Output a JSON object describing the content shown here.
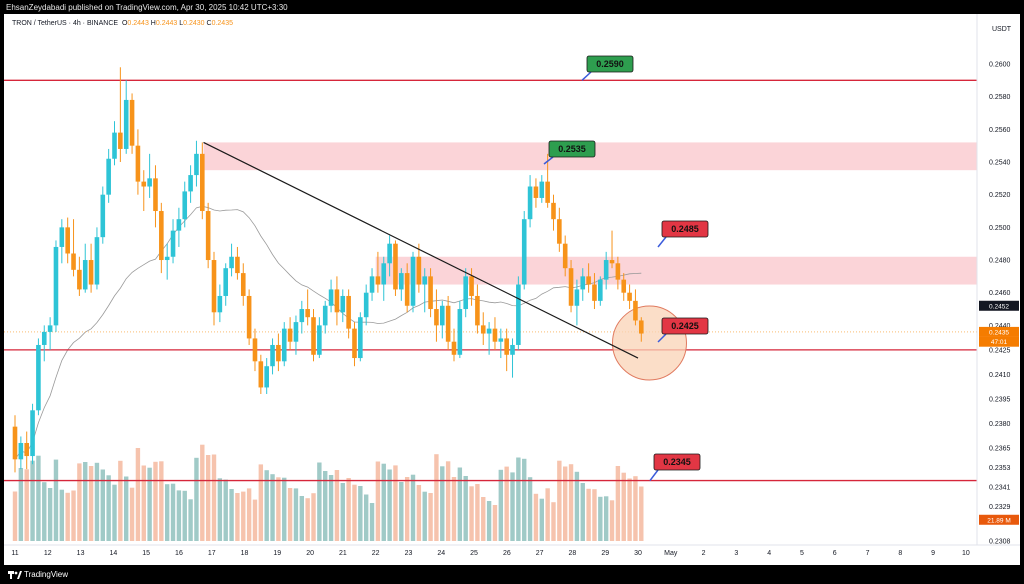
{
  "header": {
    "published_text": "EhsanZeydabadi published on TradingView.com, Apr 30, 2025 10:42 UTC+3:30"
  },
  "legend": {
    "symbol": "TRON / TetherUS · 4h · BINANCE",
    "o_label": "O",
    "o_value": "0.2443",
    "h_label": "H",
    "h_value": "0.2443",
    "l_label": "L",
    "l_value": "0.2430",
    "c_label": "C",
    "c_value": "0.2435"
  },
  "footer": {
    "brand": "TradingView"
  },
  "colors": {
    "up": "#26a69a",
    "up_candle": "#2ec4d6",
    "down": "#f7931a",
    "level_line": "#d6263a",
    "zone_fill": "#fbd4d8",
    "green_label": "#2e9e4f",
    "red_label": "#e23644",
    "circle_fill": "#f9d3b6",
    "circle_stroke": "#e07a5f"
  },
  "chart_data": {
    "type": "candlestick",
    "interval": "4h",
    "quote_currency": "USDT",
    "y_axis_label": "USDT",
    "ylim": [
      0.23,
      0.262
    ],
    "y_ticks": [
      "0.2600",
      "0.2580",
      "0.2560",
      "0.2540",
      "0.2520",
      "0.2500",
      "0.2480",
      "0.2460",
      "0.2440",
      "0.2425",
      "0.2410",
      "0.2395",
      "0.2380",
      "0.2365",
      "0.2353",
      "0.2341",
      "0.2329",
      "0.2308"
    ],
    "x_ticks": [
      "11",
      "12",
      "13",
      "14",
      "15",
      "16",
      "17",
      "18",
      "19",
      "20",
      "21",
      "22",
      "23",
      "24",
      "25",
      "26",
      "27",
      "28",
      "29",
      "30",
      "May",
      "2",
      "3",
      "4",
      "5",
      "6",
      "7",
      "8",
      "9",
      "10"
    ],
    "horizontal_levels": [
      0.259,
      0.2425,
      0.2345
    ],
    "zones": [
      {
        "from": 0.2535,
        "to": 0.2552
      },
      {
        "from": 0.2465,
        "to": 0.2482
      }
    ],
    "trendline": {
      "from": {
        "day": 16.75,
        "price": 0.2552
      },
      "to": {
        "day": 30.0,
        "price": 0.242
      }
    },
    "callouts": [
      {
        "text": "0.2590",
        "color": "green",
        "day": 29.0,
        "price": 0.259
      },
      {
        "text": "0.2535",
        "color": "green",
        "day": 27.3,
        "price": 0.2535
      },
      {
        "text": "0.2485",
        "color": "red",
        "day": 30.7,
        "price": 0.248
      },
      {
        "text": "0.2425",
        "color": "red",
        "day": 30.7,
        "price": 0.2425
      },
      {
        "text": "0.2345",
        "color": "red",
        "day": 30.4,
        "price": 0.2345
      }
    ],
    "price_tags": [
      {
        "text": "0.2452",
        "style": "dark",
        "price": 0.2452
      },
      {
        "text": "0.2435",
        "style": "orange",
        "price": 0.2436
      },
      {
        "text": "47:01",
        "style": "orange",
        "price": 0.243
      },
      {
        "text": "21.89 M",
        "style": "orange",
        "price": 0.2321
      }
    ],
    "circle": {
      "day": 30.35,
      "price": 0.2428
    },
    "candles": [
      [
        0.2378,
        0.2385,
        0.235,
        0.2358
      ],
      [
        0.2358,
        0.2372,
        0.2352,
        0.2368
      ],
      [
        0.2368,
        0.2375,
        0.2352,
        0.236
      ],
      [
        0.236,
        0.2392,
        0.2355,
        0.2388
      ],
      [
        0.2388,
        0.2432,
        0.2385,
        0.2428
      ],
      [
        0.2428,
        0.244,
        0.2418,
        0.2436
      ],
      [
        0.2436,
        0.2445,
        0.2425,
        0.244
      ],
      [
        0.244,
        0.2492,
        0.2436,
        0.2488
      ],
      [
        0.2488,
        0.2505,
        0.2478,
        0.25
      ],
      [
        0.25,
        0.2506,
        0.2478,
        0.2484
      ],
      [
        0.2484,
        0.2505,
        0.247,
        0.2474
      ],
      [
        0.2474,
        0.2482,
        0.2458,
        0.2462
      ],
      [
        0.2462,
        0.249,
        0.246,
        0.248
      ],
      [
        0.248,
        0.249,
        0.246,
        0.2465
      ],
      [
        0.2465,
        0.25,
        0.2462,
        0.2494
      ],
      [
        0.2494,
        0.2525,
        0.249,
        0.252
      ],
      [
        0.252,
        0.2548,
        0.2515,
        0.2542
      ],
      [
        0.2542,
        0.2565,
        0.2538,
        0.2558
      ],
      [
        0.2558,
        0.2598,
        0.254,
        0.2548
      ],
      [
        0.2548,
        0.259,
        0.2545,
        0.2578
      ],
      [
        0.2578,
        0.2582,
        0.2545,
        0.255
      ],
      [
        0.255,
        0.256,
        0.252,
        0.2528
      ],
      [
        0.2528,
        0.2535,
        0.251,
        0.2525
      ],
      [
        0.2525,
        0.2545,
        0.2518,
        0.253
      ],
      [
        0.253,
        0.2538,
        0.25,
        0.251
      ],
      [
        0.251,
        0.2515,
        0.2472,
        0.248
      ],
      [
        0.248,
        0.249,
        0.2468,
        0.2482
      ],
      [
        0.2482,
        0.2505,
        0.2478,
        0.2498
      ],
      [
        0.2498,
        0.2512,
        0.2488,
        0.2505
      ],
      [
        0.2505,
        0.2528,
        0.25,
        0.2522
      ],
      [
        0.2522,
        0.2538,
        0.2515,
        0.2532
      ],
      [
        0.2532,
        0.2553,
        0.2525,
        0.2545
      ],
      [
        0.2545,
        0.2552,
        0.2505,
        0.251
      ],
      [
        0.251,
        0.2515,
        0.2475,
        0.248
      ],
      [
        0.248,
        0.2485,
        0.244,
        0.2448
      ],
      [
        0.2448,
        0.2465,
        0.2442,
        0.2458
      ],
      [
        0.2458,
        0.2478,
        0.2452,
        0.2475
      ],
      [
        0.2475,
        0.249,
        0.247,
        0.2482
      ],
      [
        0.2482,
        0.2488,
        0.2468,
        0.2472
      ],
      [
        0.2472,
        0.2478,
        0.2452,
        0.2458
      ],
      [
        0.2458,
        0.2462,
        0.2428,
        0.2432
      ],
      [
        0.2432,
        0.2438,
        0.2412,
        0.2418
      ],
      [
        0.2418,
        0.2422,
        0.2398,
        0.2402
      ],
      [
        0.2402,
        0.242,
        0.2398,
        0.2415
      ],
      [
        0.2415,
        0.2432,
        0.241,
        0.2428
      ],
      [
        0.2428,
        0.2435,
        0.2412,
        0.2418
      ],
      [
        0.2418,
        0.2442,
        0.2415,
        0.2438
      ],
      [
        0.2438,
        0.2445,
        0.2425,
        0.243
      ],
      [
        0.243,
        0.2446,
        0.2422,
        0.2442
      ],
      [
        0.2442,
        0.2455,
        0.2435,
        0.245
      ],
      [
        0.245,
        0.2462,
        0.244,
        0.2445
      ],
      [
        0.2445,
        0.245,
        0.2418,
        0.2422
      ],
      [
        0.2422,
        0.2445,
        0.242,
        0.244
      ],
      [
        0.244,
        0.2455,
        0.2435,
        0.2452
      ],
      [
        0.2452,
        0.2468,
        0.2448,
        0.2462
      ],
      [
        0.2462,
        0.247,
        0.244,
        0.2448
      ],
      [
        0.2448,
        0.2462,
        0.2442,
        0.2458
      ],
      [
        0.2458,
        0.2462,
        0.2432,
        0.2438
      ],
      [
        0.2438,
        0.2442,
        0.2415,
        0.242
      ],
      [
        0.242,
        0.2448,
        0.2418,
        0.2445
      ],
      [
        0.2445,
        0.2465,
        0.244,
        0.246
      ],
      [
        0.246,
        0.2475,
        0.2455,
        0.247
      ],
      [
        0.247,
        0.2485,
        0.246,
        0.2465
      ],
      [
        0.2465,
        0.2482,
        0.2455,
        0.2478
      ],
      [
        0.2478,
        0.2495,
        0.247,
        0.249
      ],
      [
        0.249,
        0.2492,
        0.2458,
        0.2462
      ],
      [
        0.2462,
        0.2475,
        0.2455,
        0.2472
      ],
      [
        0.2472,
        0.2478,
        0.2448,
        0.2452
      ],
      [
        0.2452,
        0.2485,
        0.2448,
        0.2482
      ],
      [
        0.2482,
        0.249,
        0.246,
        0.2465
      ],
      [
        0.2465,
        0.2475,
        0.2448,
        0.247
      ],
      [
        0.247,
        0.2475,
        0.2445,
        0.245
      ],
      [
        0.245,
        0.2462,
        0.243,
        0.244
      ],
      [
        0.244,
        0.2455,
        0.2432,
        0.2452
      ],
      [
        0.2452,
        0.2458,
        0.2425,
        0.243
      ],
      [
        0.243,
        0.2438,
        0.2418,
        0.2422
      ],
      [
        0.2422,
        0.2455,
        0.242,
        0.245
      ],
      [
        0.245,
        0.2475,
        0.2445,
        0.247
      ],
      [
        0.247,
        0.2475,
        0.2452,
        0.2458
      ],
      [
        0.2458,
        0.2465,
        0.2435,
        0.244
      ],
      [
        0.244,
        0.2448,
        0.2428,
        0.2435
      ],
      [
        0.2435,
        0.2442,
        0.2422,
        0.2438
      ],
      [
        0.2438,
        0.2445,
        0.2425,
        0.243
      ],
      [
        0.243,
        0.2438,
        0.242,
        0.2432
      ],
      [
        0.2432,
        0.2438,
        0.2412,
        0.2422
      ],
      [
        0.2422,
        0.2432,
        0.2408,
        0.2428
      ],
      [
        0.2428,
        0.247,
        0.2425,
        0.2465
      ],
      [
        0.2465,
        0.251,
        0.2462,
        0.2505
      ],
      [
        0.2505,
        0.2532,
        0.25,
        0.2525
      ],
      [
        0.2525,
        0.253,
        0.2512,
        0.2518
      ],
      [
        0.2518,
        0.2532,
        0.2515,
        0.2528
      ],
      [
        0.2528,
        0.2545,
        0.2512,
        0.2515
      ],
      [
        0.2515,
        0.252,
        0.2498,
        0.2505
      ],
      [
        0.2505,
        0.2512,
        0.2485,
        0.249
      ],
      [
        0.249,
        0.2495,
        0.247,
        0.2475
      ],
      [
        0.2475,
        0.248,
        0.2448,
        0.2452
      ],
      [
        0.2452,
        0.2468,
        0.244,
        0.2462
      ],
      [
        0.2462,
        0.2475,
        0.2455,
        0.247
      ],
      [
        0.247,
        0.2478,
        0.246,
        0.2465
      ],
      [
        0.2465,
        0.2472,
        0.245,
        0.2455
      ],
      [
        0.2455,
        0.247,
        0.2452,
        0.2468
      ],
      [
        0.2468,
        0.2485,
        0.2462,
        0.248
      ],
      [
        0.248,
        0.2498,
        0.2475,
        0.2478
      ],
      [
        0.2478,
        0.2482,
        0.2462,
        0.2468
      ],
      [
        0.2468,
        0.2472,
        0.2455,
        0.246
      ],
      [
        0.246,
        0.2465,
        0.245,
        0.2455
      ],
      [
        0.2455,
        0.2462,
        0.244,
        0.2443
      ],
      [
        0.2443,
        0.2445,
        0.243,
        0.2435
      ]
    ]
  }
}
